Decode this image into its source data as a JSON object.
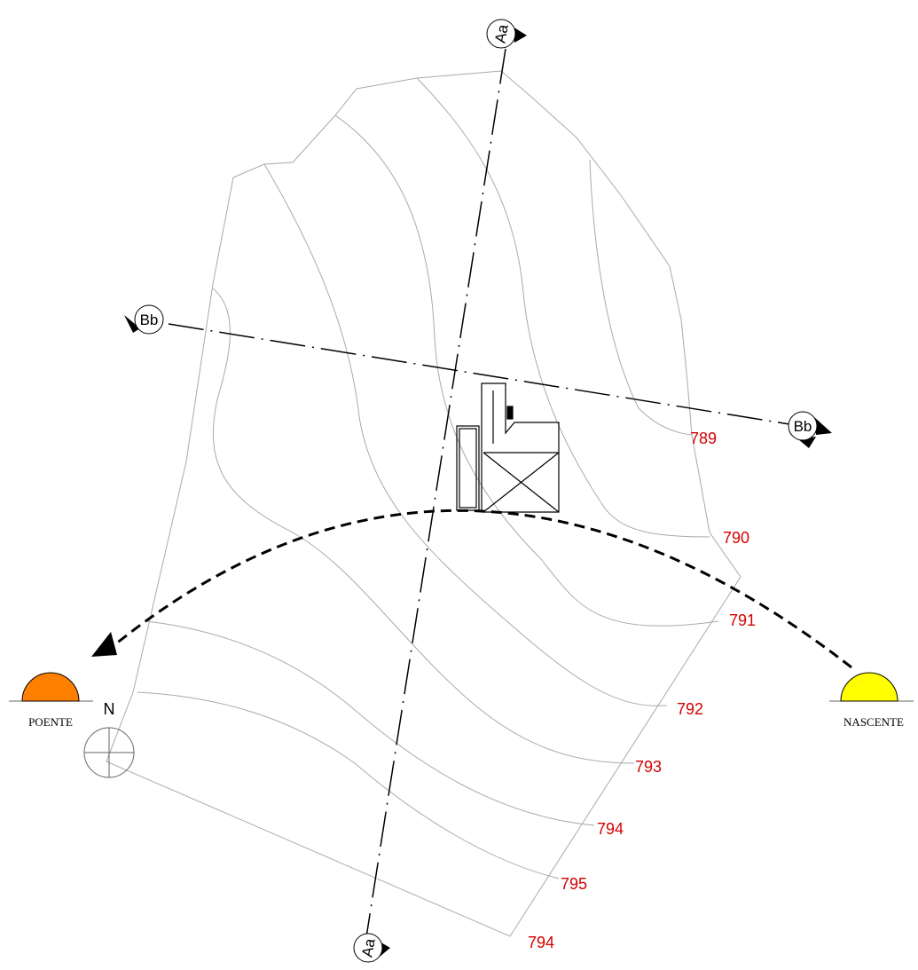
{
  "sections": [
    {
      "label": "Aa"
    },
    {
      "label": "Bb"
    }
  ],
  "contours": [
    {
      "label": 789
    },
    {
      "label": 790
    },
    {
      "label": 791
    },
    {
      "label": 792
    },
    {
      "label": 793
    },
    {
      "label": 794
    },
    {
      "label": 795
    },
    {
      "label": 794
    }
  ],
  "sun": {
    "west": "POENTE",
    "east": "NASCENTE"
  },
  "north": "N"
}
